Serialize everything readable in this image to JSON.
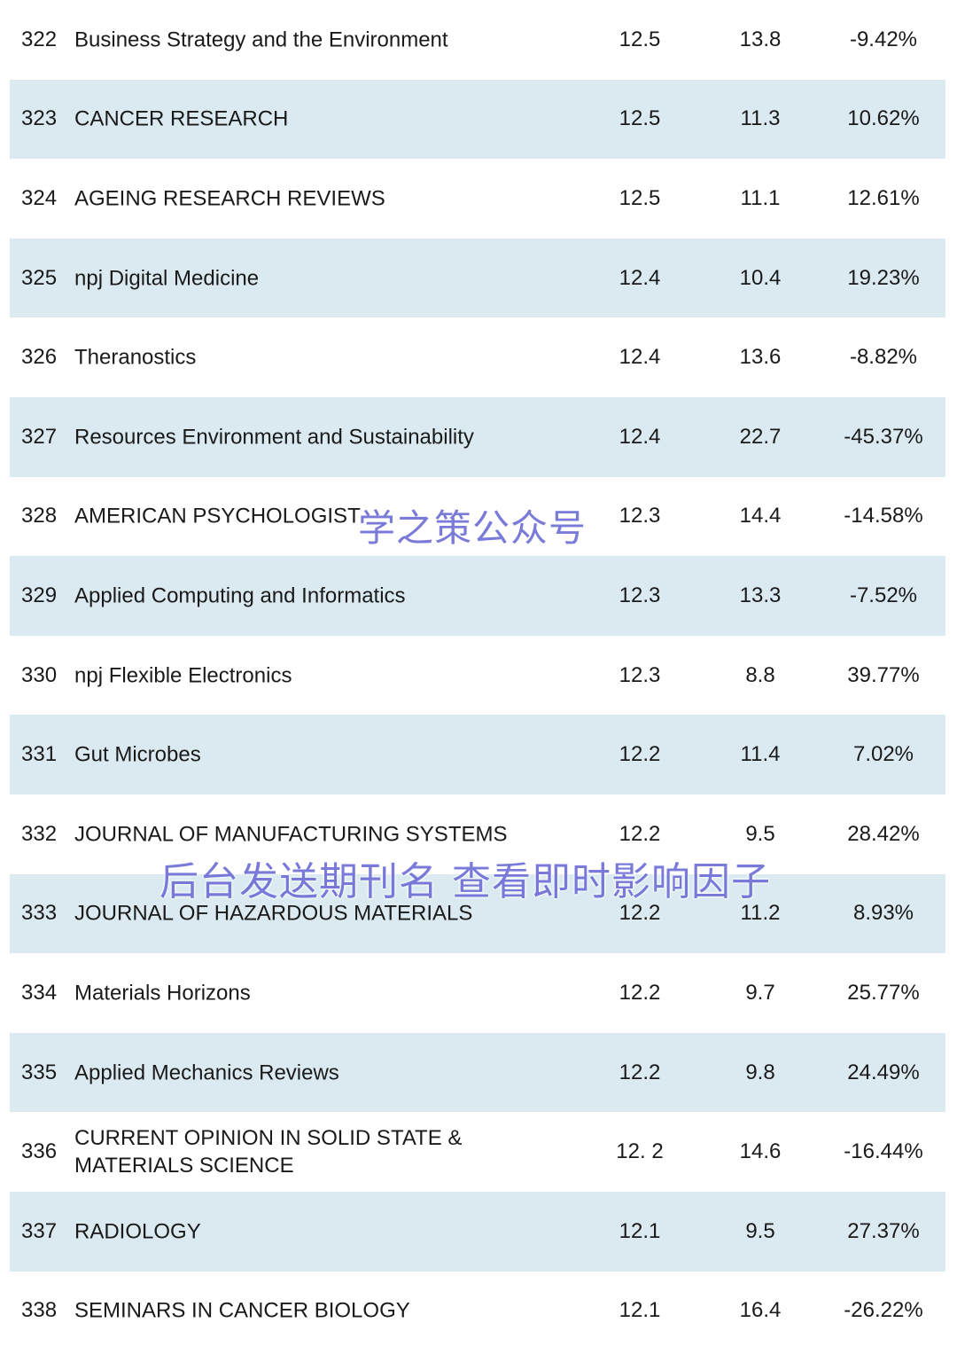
{
  "rows": [
    {
      "rank": "322",
      "name": "Business Strategy and the Environment",
      "if2023": "12.5",
      "if2022": "13.8",
      "change": "-9.42%"
    },
    {
      "rank": "323",
      "name": "CANCER RESEARCH",
      "if2023": "12.5",
      "if2022": "11.3",
      "change": "10.62%"
    },
    {
      "rank": "324",
      "name": "AGEING RESEARCH REVIEWS",
      "if2023": "12.5",
      "if2022": "11.1",
      "change": "12.61%"
    },
    {
      "rank": "325",
      "name": "npj Digital Medicine",
      "if2023": "12.4",
      "if2022": "10.4",
      "change": "19.23%"
    },
    {
      "rank": "326",
      "name": "Theranostics",
      "if2023": "12.4",
      "if2022": "13.6",
      "change": "-8.82%"
    },
    {
      "rank": "327",
      "name": "Resources Environment and Sustainability",
      "if2023": "12.4",
      "if2022": "22.7",
      "change": "-45.37%"
    },
    {
      "rank": "328",
      "name": "AMERICAN PSYCHOLOGIST",
      "if2023": "12.3",
      "if2022": "14.4",
      "change": "-14.58%"
    },
    {
      "rank": "329",
      "name": "Applied Computing and Informatics",
      "if2023": "12.3",
      "if2022": "13.3",
      "change": "-7.52%"
    },
    {
      "rank": "330",
      "name": "npj Flexible Electronics",
      "if2023": "12.3",
      "if2022": "8.8",
      "change": "39.77%"
    },
    {
      "rank": "331",
      "name": "Gut Microbes",
      "if2023": "12.2",
      "if2022": "11.4",
      "change": "7.02%"
    },
    {
      "rank": "332",
      "name": "JOURNAL OF MANUFACTURING SYSTEMS",
      "if2023": "12.2",
      "if2022": "9.5",
      "change": "28.42%"
    },
    {
      "rank": "333",
      "name": "JOURNAL OF HAZARDOUS MATERIALS",
      "if2023": "12.2",
      "if2022": "11.2",
      "change": "8.93%"
    },
    {
      "rank": "334",
      "name": "Materials Horizons",
      "if2023": "12.2",
      "if2022": "9.7",
      "change": "25.77%"
    },
    {
      "rank": "335",
      "name": "Applied Mechanics Reviews",
      "if2023": "12.2",
      "if2022": "9.8",
      "change": "24.49%"
    },
    {
      "rank": "336",
      "name": "CURRENT OPINION IN SOLID STATE &\nMATERIALS SCIENCE",
      "if2023": "12. 2",
      "if2022": "14.6",
      "change": "-16.44%"
    },
    {
      "rank": "337",
      "name": "RADIOLOGY",
      "if2023": "12.1",
      "if2022": "9.5",
      "change": "27.37%"
    },
    {
      "rank": "338",
      "name": "SEMINARS IN CANCER BIOLOGY",
      "if2023": "12.1",
      "if2022": "16.4",
      "change": "-26.22%"
    }
  ],
  "watermarks": {
    "account": "学之策公众号",
    "promo": "后台发送期刊名 查看即时影响因子"
  },
  "colors": {
    "row_shade": "#daeaf0",
    "watermark": "#6f6fd6",
    "text": "#1a1a1a"
  }
}
